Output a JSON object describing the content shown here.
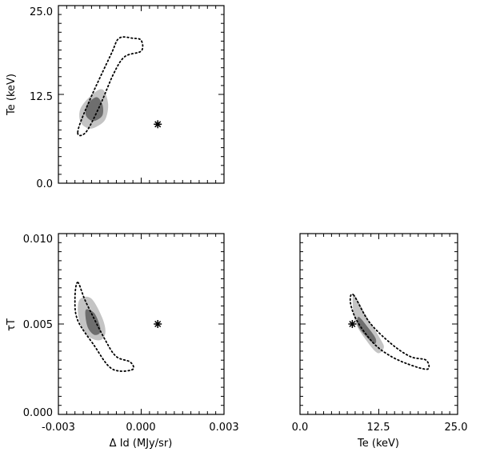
{
  "figure": {
    "background": "#ffffff",
    "ink": "#000000"
  },
  "chart_data": [
    {
      "id": "te-vs-dI",
      "type": "contour",
      "xlim": [
        -0.003,
        0.003
      ],
      "ylim": [
        0.0,
        25.0
      ],
      "yticks": [
        0.0,
        12.5,
        25.0
      ],
      "ytick_labels": [
        "0.0",
        "12.5",
        "25.0"
      ],
      "xticks": [],
      "xtick_labels": [],
      "ylabel": "Te (keV)",
      "xlabel": "",
      "marker": {
        "x": 0.0006,
        "y": 8.3,
        "symbol": "asterisk"
      },
      "contours": [
        {
          "level": "1-sigma",
          "style": "filled",
          "color": "#6e6e6e",
          "points": [
            [
              -0.0016,
              12.1
            ],
            [
              -0.0014,
              11.0
            ],
            [
              -0.0014,
              9.6
            ],
            [
              -0.0016,
              8.9
            ],
            [
              -0.0018,
              8.8
            ],
            [
              -0.002,
              9.5
            ],
            [
              -0.002,
              10.6
            ],
            [
              -0.0019,
              11.4
            ]
          ]
        },
        {
          "level": "2-sigma",
          "style": "filled",
          "color": "#c4c4c4",
          "points": [
            [
              -0.0014,
              13.2
            ],
            [
              -0.0012,
              11.2
            ],
            [
              -0.0013,
              9.0
            ],
            [
              -0.0016,
              8.0
            ],
            [
              -0.0019,
              7.7
            ],
            [
              -0.0022,
              8.6
            ],
            [
              -0.0022,
              10.5
            ],
            [
              -0.0018,
              12.4
            ]
          ]
        },
        {
          "level": "comparison",
          "style": "dotted",
          "color": "#000000",
          "points": [
            [
              -0.0023,
              7.2
            ],
            [
              -0.0019,
              11.4
            ],
            [
              -0.0011,
              18.1
            ],
            [
              -0.0008,
              20.4
            ],
            [
              -0.0003,
              20.4
            ],
            [
              0.0,
              20.1
            ],
            [
              0.0,
              18.6
            ],
            [
              -0.0006,
              17.8
            ],
            [
              -0.001,
              15.4
            ],
            [
              -0.0015,
              10.9
            ],
            [
              -0.002,
              7.2
            ]
          ]
        }
      ]
    },
    {
      "id": "tau-vs-dI",
      "type": "contour",
      "xlim": [
        -0.003,
        0.003
      ],
      "ylim": [
        0.0,
        0.01
      ],
      "xticks": [
        -0.003,
        0.0,
        0.003
      ],
      "xtick_labels": [
        "-0.003",
        "0.000",
        "0.003"
      ],
      "yticks": [
        0.0,
        0.005,
        0.01
      ],
      "ytick_labels": [
        "0.000",
        "0.005",
        "0.010"
      ],
      "xlabel": "Δ Id (MJy/sr)",
      "ylabel": "τT",
      "marker": {
        "x": 0.0006,
        "y": 0.005,
        "symbol": "asterisk"
      },
      "contours": [
        {
          "level": "1-sigma",
          "style": "filled",
          "color": "#6e6e6e",
          "points": [
            [
              -0.002,
              0.0058
            ],
            [
              -0.0017,
              0.0056
            ],
            [
              -0.0015,
              0.0049
            ],
            [
              -0.0015,
              0.0045
            ],
            [
              -0.0017,
              0.0044
            ],
            [
              -0.0019,
              0.0047
            ],
            [
              -0.002,
              0.0052
            ]
          ]
        },
        {
          "level": "2-sigma",
          "style": "filled",
          "color": "#c4c4c4",
          "points": [
            [
              -0.0022,
              0.0064
            ],
            [
              -0.0018,
              0.0064
            ],
            [
              -0.0014,
              0.0053
            ],
            [
              -0.0013,
              0.0045
            ],
            [
              -0.0015,
              0.0041
            ],
            [
              -0.0019,
              0.0043
            ],
            [
              -0.0022,
              0.005
            ],
            [
              -0.0023,
              0.0058
            ]
          ]
        },
        {
          "level": "comparison",
          "style": "dotted",
          "color": "#000000",
          "points": [
            [
              -0.0023,
              0.0073
            ],
            [
              -0.002,
              0.0062
            ],
            [
              -0.0013,
              0.0041
            ],
            [
              -0.0009,
              0.0032
            ],
            [
              -0.0004,
              0.0029
            ],
            [
              -0.0003,
              0.0025
            ],
            [
              -0.0008,
              0.0024
            ],
            [
              -0.0012,
              0.0027
            ],
            [
              -0.0017,
              0.0038
            ],
            [
              -0.0023,
              0.0052
            ],
            [
              -0.0024,
              0.0064
            ]
          ]
        }
      ]
    },
    {
      "id": "tau-vs-te",
      "type": "contour",
      "xlim": [
        0.0,
        25.0
      ],
      "ylim": [
        0.0,
        0.01
      ],
      "xticks": [
        0.0,
        12.5,
        25.0
      ],
      "xtick_labels": [
        "0.0",
        "12.5",
        "25.0"
      ],
      "yticks": [],
      "ytick_labels": [],
      "xlabel": "Te (keV)",
      "ylabel": "",
      "marker": {
        "x": 8.3,
        "y": 0.005,
        "symbol": "asterisk"
      },
      "contours": [
        {
          "level": "1-sigma",
          "style": "filled",
          "color": "#6e6e6e",
          "points": [
            [
              9.3,
              0.0054
            ],
            [
              10.8,
              0.0048
            ],
            [
              12.0,
              0.0042
            ],
            [
              11.8,
              0.0039
            ],
            [
              10.5,
              0.0043
            ],
            [
              9.2,
              0.0049
            ]
          ]
        },
        {
          "level": "2-sigma",
          "style": "filled",
          "color": "#c4c4c4",
          "points": [
            [
              8.6,
              0.0066
            ],
            [
              10.6,
              0.0054
            ],
            [
              12.7,
              0.0042
            ],
            [
              13.3,
              0.0037
            ],
            [
              12.3,
              0.0034
            ],
            [
              10.5,
              0.0041
            ],
            [
              8.9,
              0.005
            ],
            [
              8.4,
              0.0059
            ]
          ]
        },
        {
          "level": "comparison",
          "style": "dotted",
          "color": "#000000",
          "points": [
            [
              8.5,
              0.0066
            ],
            [
              11.0,
              0.0051
            ],
            [
              14.5,
              0.0039
            ],
            [
              17.5,
              0.0032
            ],
            [
              20.0,
              0.003
            ],
            [
              20.2,
              0.0025
            ],
            [
              17.0,
              0.0028
            ],
            [
              14.0,
              0.0033
            ],
            [
              11.5,
              0.004
            ],
            [
              9.0,
              0.0052
            ],
            [
              8.0,
              0.0062
            ]
          ]
        }
      ]
    }
  ]
}
